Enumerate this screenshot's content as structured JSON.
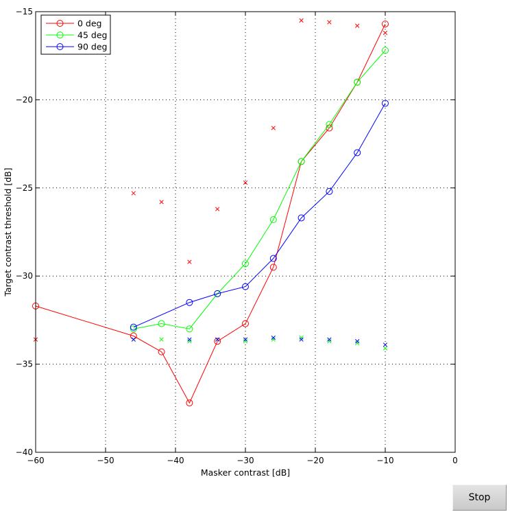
{
  "stop_button": {
    "label": "Stop"
  },
  "chart_data": {
    "type": "line",
    "xlabel": "Masker contrast [dB]",
    "ylabel": "Target contrast threshold [dB]",
    "xlim": [
      -60,
      0
    ],
    "ylim": [
      -40,
      -15
    ],
    "x_ticks": [
      "−60",
      "−50",
      "−40",
      "−30",
      "−20",
      "−10",
      "0"
    ],
    "y_ticks": [
      "−40",
      "−35",
      "−30",
      "−25",
      "−20",
      "−15"
    ],
    "grid": true,
    "legend_position": "top-left",
    "series": [
      {
        "name": "0 deg",
        "color": "#ff0000",
        "marker": "circle",
        "points": [
          [
            -60,
            -31.7
          ],
          [
            -46,
            -33.4
          ],
          [
            -42,
            -34.3
          ],
          [
            -38,
            -37.2
          ],
          [
            -34,
            -33.7
          ],
          [
            -30,
            -32.7
          ],
          [
            -26,
            -29.5
          ],
          [
            -22,
            -23.5
          ],
          [
            -18,
            -21.6
          ],
          [
            -14,
            -19.0
          ],
          [
            -10,
            -15.7
          ]
        ]
      },
      {
        "name": "45 deg",
        "color": "#00ff00",
        "marker": "circle",
        "points": [
          [
            -46,
            -33.0
          ],
          [
            -42,
            -32.7
          ],
          [
            -38,
            -33.0
          ],
          [
            -34,
            -31.0
          ],
          [
            -30,
            -29.3
          ],
          [
            -26,
            -26.8
          ],
          [
            -22,
            -23.5
          ],
          [
            -18,
            -21.4
          ],
          [
            -14,
            -19.0
          ],
          [
            -10,
            -17.2
          ]
        ]
      },
      {
        "name": "90 deg",
        "color": "#0000ff",
        "marker": "circle",
        "points": [
          [
            -46,
            -32.9
          ],
          [
            -38,
            -31.5
          ],
          [
            -34,
            -31.0
          ],
          [
            -30,
            -30.6
          ],
          [
            -26,
            -29.0
          ],
          [
            -22,
            -26.7
          ],
          [
            -18,
            -25.2
          ],
          [
            -14,
            -23.0
          ],
          [
            -10,
            -20.2
          ]
        ]
      }
    ],
    "cross_markers": [
      {
        "color": "#ff0000",
        "points": [
          [
            -60,
            -33.6
          ],
          [
            -46,
            -25.3
          ],
          [
            -42,
            -25.8
          ],
          [
            -38,
            -29.2
          ],
          [
            -34,
            -26.2
          ],
          [
            -30,
            -24.7
          ],
          [
            -26,
            -21.6
          ],
          [
            -22,
            -15.5
          ],
          [
            -18,
            -15.6
          ],
          [
            -14,
            -15.8
          ],
          [
            -10,
            -16.2
          ]
        ]
      },
      {
        "color": "#00ff00",
        "points": [
          [
            -46,
            -33.6
          ],
          [
            -42,
            -33.6
          ],
          [
            -38,
            -33.7
          ],
          [
            -34,
            -33.6
          ],
          [
            -30,
            -33.7
          ],
          [
            -26,
            -33.6
          ],
          [
            -22,
            -33.5
          ],
          [
            -18,
            -33.7
          ],
          [
            -14,
            -33.8
          ],
          [
            -10,
            -34.1
          ]
        ]
      },
      {
        "color": "#0000ff",
        "points": [
          [
            -46,
            -33.6
          ],
          [
            -38,
            -33.6
          ],
          [
            -34,
            -33.6
          ],
          [
            -30,
            -33.6
          ],
          [
            -26,
            -33.5
          ],
          [
            -22,
            -33.6
          ],
          [
            -18,
            -33.6
          ],
          [
            -14,
            -33.7
          ],
          [
            -10,
            -33.9
          ]
        ]
      }
    ]
  }
}
